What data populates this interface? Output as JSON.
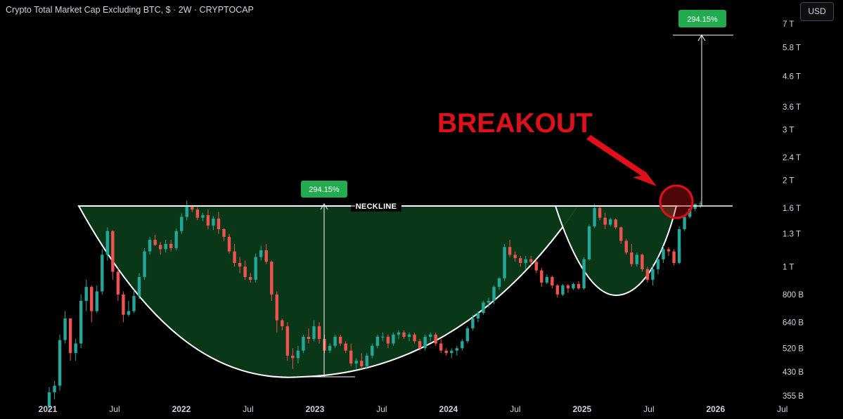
{
  "header": {
    "title": "Crypto Total Market Cap Excluding BTC, $ · 2W · CRYPTOCAP",
    "currency": "USD"
  },
  "colors": {
    "up": "#26a69a",
    "down": "#ef5350",
    "pattern_fill": "#0b3a18",
    "annotation_red": "#e0101a",
    "label_green": "#22ab4f",
    "background": "#000000"
  },
  "chart_data": {
    "type": "candlestick",
    "title": "Crypto Total Market Cap Excluding BTC, $ · 2W · CRYPTOCAP",
    "y_scale": "log",
    "ylim": [
      350000000000,
      7300000000000
    ],
    "y_tick_labels": [
      "355 B",
      "430 B",
      "520 B",
      "640 B",
      "800 B",
      "1 T",
      "1.3 T",
      "1.6 T",
      "2 T",
      "2.4 T",
      "3 T",
      "3.6 T",
      "4.6 T",
      "5.8 T",
      "7 T"
    ],
    "y_tick_values": [
      355,
      430,
      520,
      640,
      800,
      1000,
      1300,
      1600,
      2000,
      2400,
      3000,
      3600,
      4600,
      5800,
      7000
    ],
    "y_unit": "B USD",
    "x_tick_labels": [
      "2021",
      "Jul",
      "2022",
      "Jul",
      "2023",
      "Jul",
      "2024",
      "Jul",
      "2025",
      "Jul",
      "2026",
      "Jul"
    ],
    "x_tick_dates": [
      "2021-01",
      "2021-07",
      "2022-01",
      "2022-07",
      "2023-01",
      "2023-07",
      "2024-01",
      "2024-07",
      "2025-01",
      "2025-07",
      "2026-01",
      "2026-07"
    ],
    "x_tick_bold": [
      true,
      false,
      true,
      false,
      true,
      false,
      true,
      false,
      true,
      false,
      true,
      false
    ],
    "candles_billions": [
      [
        325,
        380,
        310,
        365
      ],
      [
        365,
        400,
        345,
        385
      ],
      [
        385,
        580,
        370,
        555
      ],
      [
        555,
        700,
        540,
        660
      ],
      [
        660,
        590,
        470,
        500
      ],
      [
        500,
        560,
        470,
        540
      ],
      [
        540,
        800,
        520,
        760
      ],
      [
        760,
        900,
        700,
        850
      ],
      [
        850,
        860,
        640,
        700
      ],
      [
        700,
        860,
        690,
        820
      ],
      [
        820,
        1150,
        800,
        1100
      ],
      [
        1100,
        1370,
        1050,
        1330
      ],
      [
        1330,
        1340,
        900,
        960
      ],
      [
        960,
        990,
        760,
        800
      ],
      [
        800,
        820,
        640,
        680
      ],
      [
        680,
        760,
        670,
        700
      ],
      [
        700,
        830,
        690,
        790
      ],
      [
        790,
        950,
        770,
        920
      ],
      [
        920,
        1160,
        900,
        1130
      ],
      [
        1130,
        1270,
        1100,
        1240
      ],
      [
        1240,
        1290,
        1180,
        1190
      ],
      [
        1190,
        1220,
        1100,
        1150
      ],
      [
        1150,
        1240,
        1120,
        1200
      ],
      [
        1200,
        1240,
        1130,
        1160
      ],
      [
        1160,
        1360,
        1140,
        1330
      ],
      [
        1330,
        1530,
        1300,
        1490
      ],
      [
        1490,
        1700,
        1450,
        1630
      ],
      [
        1630,
        1640,
        1550,
        1580
      ],
      [
        1580,
        1610,
        1450,
        1480
      ],
      [
        1480,
        1540,
        1440,
        1510
      ],
      [
        1510,
        1580,
        1350,
        1390
      ],
      [
        1390,
        1500,
        1340,
        1470
      ],
      [
        1470,
        1550,
        1300,
        1350
      ],
      [
        1350,
        1360,
        1230,
        1270
      ],
      [
        1270,
        1300,
        1110,
        1130
      ],
      [
        1130,
        1200,
        1000,
        1030
      ],
      [
        1030,
        1080,
        950,
        1000
      ],
      [
        1000,
        1050,
        900,
        920
      ],
      [
        920,
        950,
        880,
        900
      ],
      [
        900,
        1110,
        880,
        1080
      ],
      [
        1080,
        1180,
        1050,
        1140
      ],
      [
        1140,
        1200,
        1020,
        1040
      ],
      [
        1040,
        1050,
        760,
        800
      ],
      [
        800,
        820,
        590,
        650
      ],
      [
        650,
        660,
        600,
        620
      ],
      [
        620,
        640,
        470,
        490
      ],
      [
        490,
        520,
        440,
        480
      ],
      [
        480,
        530,
        460,
        510
      ],
      [
        510,
        580,
        500,
        570
      ],
      [
        570,
        610,
        540,
        560
      ],
      [
        560,
        650,
        550,
        620
      ],
      [
        620,
        640,
        540,
        560
      ],
      [
        560,
        580,
        500,
        510
      ],
      [
        510,
        540,
        500,
        530
      ],
      [
        530,
        580,
        520,
        570
      ],
      [
        570,
        580,
        530,
        540
      ],
      [
        540,
        550,
        500,
        510
      ],
      [
        510,
        540,
        450,
        460
      ],
      [
        460,
        480,
        440,
        470
      ],
      [
        470,
        500,
        440,
        450
      ],
      [
        450,
        500,
        440,
        490
      ],
      [
        490,
        540,
        480,
        530
      ],
      [
        530,
        580,
        520,
        570
      ],
      [
        570,
        590,
        550,
        570
      ],
      [
        570,
        580,
        520,
        540
      ],
      [
        540,
        590,
        530,
        580
      ],
      [
        580,
        600,
        560,
        590
      ],
      [
        590,
        600,
        560,
        570
      ],
      [
        570,
        590,
        550,
        580
      ],
      [
        580,
        590,
        540,
        550
      ],
      [
        550,
        560,
        510,
        520
      ],
      [
        520,
        580,
        510,
        570
      ],
      [
        570,
        590,
        550,
        580
      ],
      [
        580,
        590,
        530,
        540
      ],
      [
        540,
        560,
        500,
        510
      ],
      [
        510,
        520,
        490,
        500
      ],
      [
        500,
        520,
        480,
        510
      ],
      [
        510,
        530,
        490,
        520
      ],
      [
        520,
        560,
        510,
        550
      ],
      [
        550,
        620,
        540,
        610
      ],
      [
        610,
        680,
        600,
        660
      ],
      [
        660,
        700,
        640,
        690
      ],
      [
        690,
        760,
        680,
        750
      ],
      [
        750,
        780,
        720,
        760
      ],
      [
        760,
        860,
        740,
        850
      ],
      [
        850,
        920,
        830,
        910
      ],
      [
        910,
        1200,
        890,
        1170
      ],
      [
        1170,
        1240,
        1080,
        1100
      ],
      [
        1100,
        1130,
        1040,
        1070
      ],
      [
        1070,
        1090,
        1000,
        1030
      ],
      [
        1030,
        1090,
        980,
        1060
      ],
      [
        1060,
        1090,
        1010,
        1040
      ],
      [
        1040,
        1060,
        950,
        970
      ],
      [
        970,
        990,
        850,
        880
      ],
      [
        880,
        940,
        870,
        920
      ],
      [
        920,
        930,
        840,
        860
      ],
      [
        860,
        870,
        780,
        800
      ],
      [
        800,
        870,
        790,
        860
      ],
      [
        860,
        870,
        810,
        840
      ],
      [
        840,
        880,
        830,
        870
      ],
      [
        870,
        890,
        830,
        840
      ],
      [
        840,
        1080,
        830,
        1060
      ],
      [
        1060,
        1400,
        1050,
        1380
      ],
      [
        1380,
        1650,
        1360,
        1600
      ],
      [
        1600,
        1620,
        1450,
        1480
      ],
      [
        1480,
        1540,
        1350,
        1400
      ],
      [
        1400,
        1480,
        1380,
        1460
      ],
      [
        1460,
        1470,
        1350,
        1370
      ],
      [
        1370,
        1380,
        1200,
        1230
      ],
      [
        1230,
        1250,
        1100,
        1120
      ],
      [
        1120,
        1200,
        1000,
        1020
      ],
      [
        1020,
        1120,
        1000,
        1100
      ],
      [
        1100,
        1110,
        960,
        980
      ],
      [
        980,
        1000,
        880,
        900
      ],
      [
        900,
        1020,
        860,
        980
      ],
      [
        980,
        1080,
        940,
        1060
      ],
      [
        1060,
        1180,
        1030,
        1150
      ],
      [
        1150,
        1170,
        1090,
        1130
      ],
      [
        1130,
        1150,
        1010,
        1030
      ],
      [
        1030,
        1380,
        1020,
        1350
      ],
      [
        1350,
        1520,
        1330,
        1490
      ],
      [
        1490,
        1600,
        1470,
        1590
      ],
      [
        1590,
        1660,
        1560,
        1650
      ],
      [
        1650,
        1690,
        1600,
        1660
      ]
    ],
    "neckline_value_billions": 1640,
    "pattern": "cup and handle",
    "annotations": {
      "neckline": "NECKLINE",
      "cup_depth_pct": "294.15%",
      "target_pct": "294.15%",
      "breakout": "BREAKOUT"
    }
  }
}
